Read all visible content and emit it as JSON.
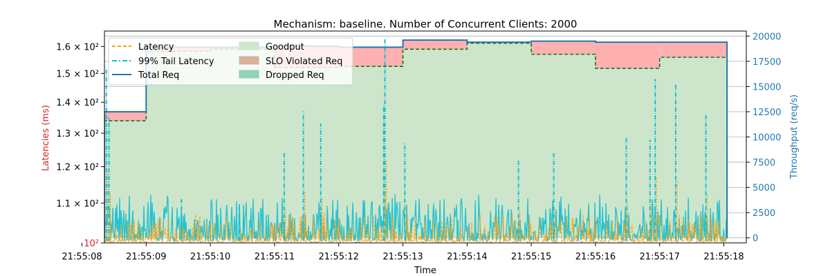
{
  "chart_data": {
    "type": "line",
    "title": "Mechanism: baseline. Number of Concurrent Clients: 2000",
    "xlabel": "Time",
    "ylabel_left": "Latencies (ms)",
    "ylabel_right": "Throughput (req/s)",
    "left_axis_scale": "log",
    "ylim_left": [
      100,
      166
    ],
    "ylim_right": [
      -500,
      20500
    ],
    "xlim": [
      "21:55:08.35",
      "21:55:18.35"
    ],
    "grid": "horizontal, right axis",
    "legend_placement": "top-left",
    "colors": {
      "left_axis": "#d62728",
      "right_axis": "#1f77b4",
      "latency": "#ff9f0e",
      "tail_latency": "#17becf",
      "total_req": "#1f77b4",
      "goodput_fill": "#cde6cb",
      "goodput_edge": "#2ca02c",
      "slo_violated": "#ffb0b0",
      "dropped": "#66c2a5"
    },
    "left_ticks": [
      {
        "value": 100,
        "label": "10²"
      },
      {
        "value": 110,
        "label": "1.1 × 10²"
      },
      {
        "value": 120,
        "label": "1.2 × 10²"
      },
      {
        "value": 130,
        "label": "1.3 × 10²"
      },
      {
        "value": 140,
        "label": "1.4 × 10²"
      },
      {
        "value": 150,
        "label": "1.5 × 10²"
      },
      {
        "value": 160,
        "label": "1.6 × 10²"
      }
    ],
    "right_ticks": [
      0,
      2500,
      5000,
      7500,
      10000,
      12500,
      15000,
      17500,
      20000
    ],
    "x_ticks": [
      "21:55:08",
      "21:55:09",
      "21:55:10",
      "21:55:11",
      "21:55:12",
      "21:55:13",
      "21:55:14",
      "21:55:15",
      "21:55:16",
      "21:55:17",
      "21:55:18"
    ],
    "legend": [
      {
        "label": "Latency",
        "style": "dashed",
        "color": "#ff9f0e"
      },
      {
        "label": "99% Tail Latency",
        "style": "dashdot",
        "color": "#17becf"
      },
      {
        "label": "Total Req",
        "style": "solid",
        "color": "#1f77b4"
      },
      {
        "label": "Goodput",
        "style": "patch",
        "color": "#cde6cb"
      },
      {
        "label": "SLO Violated Req",
        "style": "patch",
        "color": "#d9b09a"
      },
      {
        "label": "Dropped Req",
        "style": "patch",
        "color": "#8fd3b9"
      }
    ],
    "throughput_steps": [
      {
        "start": "21:55:08.35",
        "end": "21:55:09.0",
        "total": 12500,
        "goodput": 11600
      },
      {
        "start": "21:55:09.0",
        "end": "21:55:10.0",
        "total": 18900,
        "goodput": 18500
      },
      {
        "start": "21:55:10.0",
        "end": "21:55:11.0",
        "total": 18900,
        "goodput": 18700
      },
      {
        "start": "21:55:11.0",
        "end": "21:55:12.0",
        "total": 19000,
        "goodput": 16900
      },
      {
        "start": "21:55:12.0",
        "end": "21:55:13.0",
        "total": 18900,
        "goodput": 17000
      },
      {
        "start": "21:55:13.0",
        "end": "21:55:14.0",
        "total": 19600,
        "goodput": 18700
      },
      {
        "start": "21:55:14.0",
        "end": "21:55:15.0",
        "total": 19400,
        "goodput": 19300
      },
      {
        "start": "21:55:15.0",
        "end": "21:55:16.0",
        "total": 19500,
        "goodput": 18200
      },
      {
        "start": "21:55:16.0",
        "end": "21:55:17.0",
        "total": 19400,
        "goodput": 16800
      },
      {
        "start": "21:55:17.0",
        "end": "21:55:18.05",
        "total": 19400,
        "goodput": 17900
      }
    ],
    "tail_latency_spikes": [
      {
        "t": "21:55:08.38",
        "v": 152
      },
      {
        "t": "21:55:08.42",
        "v": 135
      },
      {
        "t": "21:55:09.55",
        "v": 111
      },
      {
        "t": "21:55:10.45",
        "v": 110
      },
      {
        "t": "21:55:11.15",
        "v": 124
      },
      {
        "t": "21:55:11.45",
        "v": 137
      },
      {
        "t": "21:55:11.72",
        "v": 133
      },
      {
        "t": "21:55:12.72",
        "v": 163
      },
      {
        "t": "21:55:12.70",
        "v": 139
      },
      {
        "t": "21:55:13.03",
        "v": 127
      },
      {
        "t": "21:55:14.80",
        "v": 122
      },
      {
        "t": "21:55:15.35",
        "v": 124
      },
      {
        "t": "21:55:16.48",
        "v": 129
      },
      {
        "t": "21:55:16.85",
        "v": 128
      },
      {
        "t": "21:55:16.93",
        "v": 148
      },
      {
        "t": "21:55:17.25",
        "v": 146
      },
      {
        "t": "21:55:17.72",
        "v": 136
      }
    ],
    "tail_latency_baseline": 105,
    "latency_baseline": 102,
    "data_end": "21:55:18.05"
  }
}
